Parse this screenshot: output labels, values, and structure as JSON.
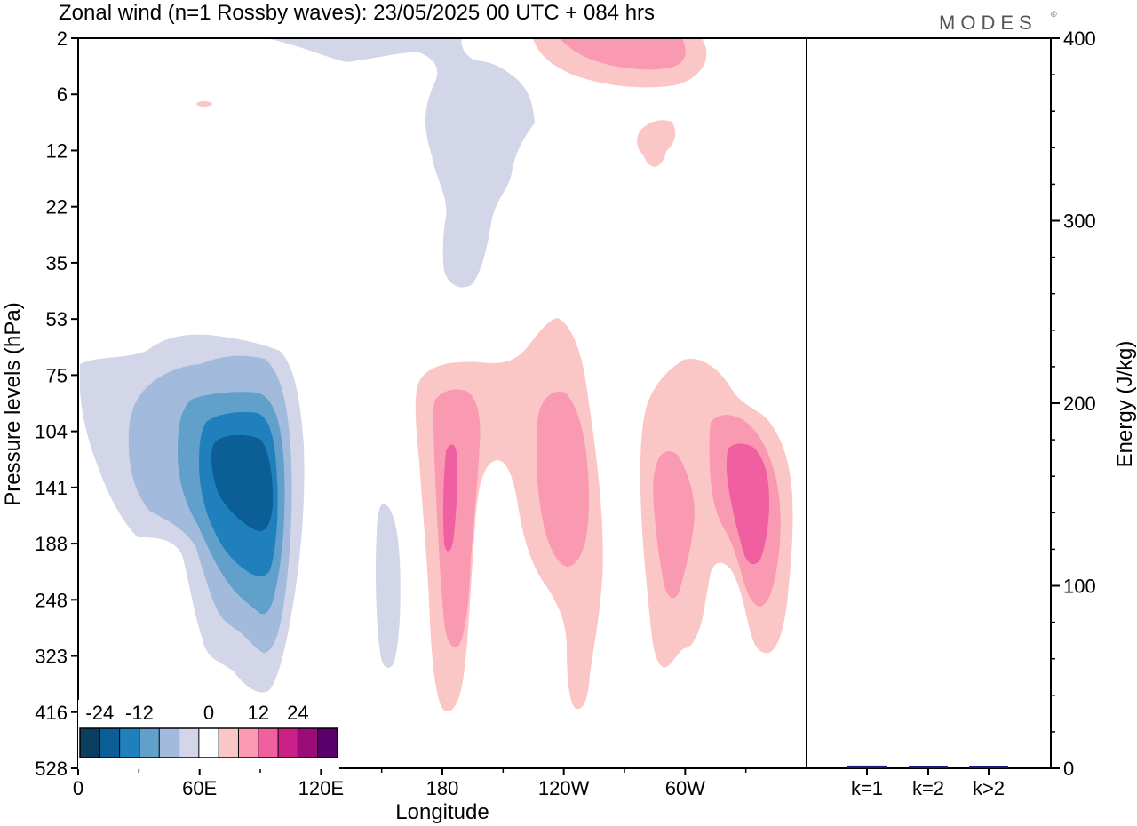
{
  "chart_data": [
    {
      "type": "heatmap",
      "title": "Zonal wind (n=1 Rossby waves):  23/05/2025  00 UTC  + 084 hrs",
      "xlabel": "Longitude",
      "ylabel": "Pressure levels (hPa)",
      "x_ticks": [
        "0",
        "60E",
        "120E",
        "180",
        "120W",
        "60W"
      ],
      "y_ticks": [
        "2",
        "6",
        "12",
        "22",
        "35",
        "53",
        "75",
        "104",
        "141",
        "188",
        "248",
        "323",
        "416",
        "528"
      ],
      "colorbar": {
        "tick_labels": [
          "-24",
          "-12",
          "0",
          "12",
          "24"
        ],
        "levels": [
          -30,
          -25,
          -20,
          -15,
          -10,
          -5,
          5,
          10,
          15,
          20,
          25,
          30
        ],
        "colors": [
          "#0c3e60",
          "#0b5f96",
          "#2080bd",
          "#60a0cb",
          "#a2bbdc",
          "#d3d5e8",
          "#ffffff",
          "#fbc7c6",
          "#f99ab2",
          "#f060a0",
          "#cc2088",
          "#9a0c78",
          "#5a006c"
        ]
      },
      "features": [
        {
          "sign": "negative",
          "longitude_range": [
            "5E",
            "90E"
          ],
          "pressure_range_hPa": [
            60,
            380
          ],
          "min_value": -27,
          "core": {
            "lon": "72E",
            "p_hPa": 130
          }
        },
        {
          "sign": "negative",
          "longitude_range": [
            "150E",
            "170E"
          ],
          "pressure_range_hPa": [
            150,
            330
          ],
          "min_value": -7
        },
        {
          "sign": "negative",
          "longitude_range": [
            "105E",
            "175W"
          ],
          "pressure_range_hPa": [
            2,
            40
          ],
          "min_value": -7
        },
        {
          "sign": "positive",
          "longitude_range": [
            "180",
            "100W"
          ],
          "pressure_range_hPa": [
            50,
            420
          ],
          "max_value": 17,
          "core": {
            "lon": "177W",
            "p_hPa": 130
          }
        },
        {
          "sign": "positive",
          "longitude_range": [
            "90W",
            "5W"
          ],
          "pressure_range_hPa": [
            70,
            330
          ],
          "max_value": 17,
          "core": {
            "lon": "24W",
            "p_hPa": 130
          }
        },
        {
          "sign": "positive",
          "longitude_range": [
            "150W",
            "105W"
          ],
          "pressure_range_hPa": [
            2,
            5
          ],
          "max_value": 12
        },
        {
          "sign": "positive",
          "longitude_range": [
            "90W",
            "80W"
          ],
          "pressure_range_hPa": [
            9,
            14
          ],
          "max_value": 7
        }
      ]
    },
    {
      "type": "bar",
      "ylabel": "Energy (J/kg)",
      "categories": [
        "k=1",
        "k=2",
        "k>2"
      ],
      "values": [
        1.5,
        0.5,
        0.8
      ],
      "ylim": [
        0,
        400
      ],
      "y_ticks": [
        "0",
        "100",
        "200",
        "300",
        "400"
      ],
      "bar_colors": [
        "#1a1a80",
        "#1a1a80",
        "#1a1a80"
      ]
    }
  ],
  "branding": {
    "name": "MODES",
    "mark": "©"
  }
}
